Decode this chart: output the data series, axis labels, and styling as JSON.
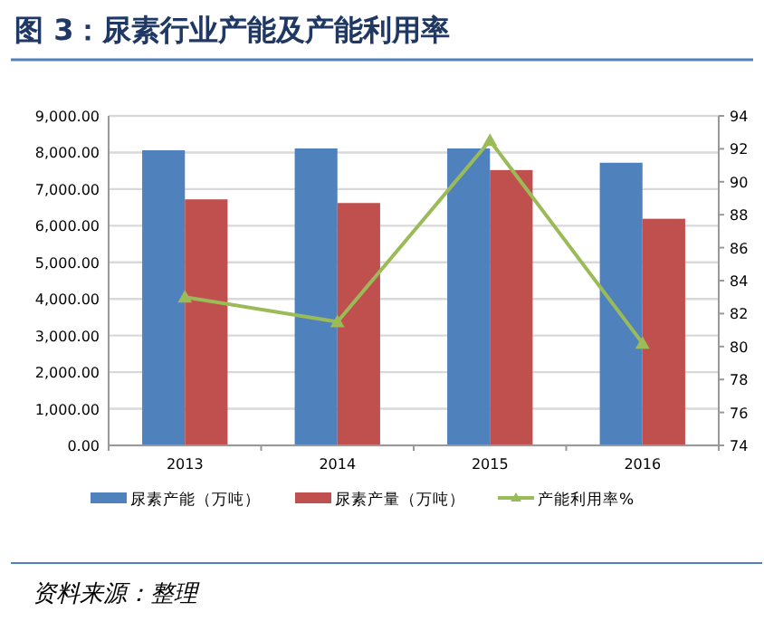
{
  "chart_data": {
    "type": "bar",
    "title": "图 3：尿素行业产能及产能利用率",
    "categories": [
      "2013",
      "2014",
      "2015",
      "2016"
    ],
    "series": [
      {
        "name": "尿素产能（万吨）",
        "color": "#4f81bd",
        "values": [
          8060,
          8110,
          8110,
          7720
        ]
      },
      {
        "name": "尿素产量（万吨）",
        "color": "#c0504d",
        "values": [
          6720,
          6620,
          7520,
          6190
        ]
      },
      {
        "name": "产能利用率%",
        "type": "line",
        "axis": "y2",
        "marker": "triangle",
        "color": "#9bbb59",
        "values": [
          83.0,
          81.5,
          92.5,
          80.2
        ]
      }
    ],
    "ylim": [
      0,
      9000
    ],
    "yticks": [
      {
        "value": 0,
        "label": "0.00"
      },
      {
        "value": 1000,
        "label": "1,000.00"
      },
      {
        "value": 2000,
        "label": "2,000.00"
      },
      {
        "value": 3000,
        "label": "3,000.00"
      },
      {
        "value": 4000,
        "label": "4,000.00"
      },
      {
        "value": 5000,
        "label": "5,000.00"
      },
      {
        "value": 6000,
        "label": "6,000.00"
      },
      {
        "value": 7000,
        "label": "7,000.00"
      },
      {
        "value": 8000,
        "label": "8,000.00"
      },
      {
        "value": 9000,
        "label": "9,000.00"
      }
    ],
    "y2lim": [
      74,
      94
    ],
    "y2ticks": [
      74,
      76,
      78,
      80,
      82,
      84,
      86,
      88,
      90,
      92,
      94
    ],
    "grid": "y",
    "legend": "bottom",
    "annotations": [
      "资料来源：整理"
    ]
  }
}
